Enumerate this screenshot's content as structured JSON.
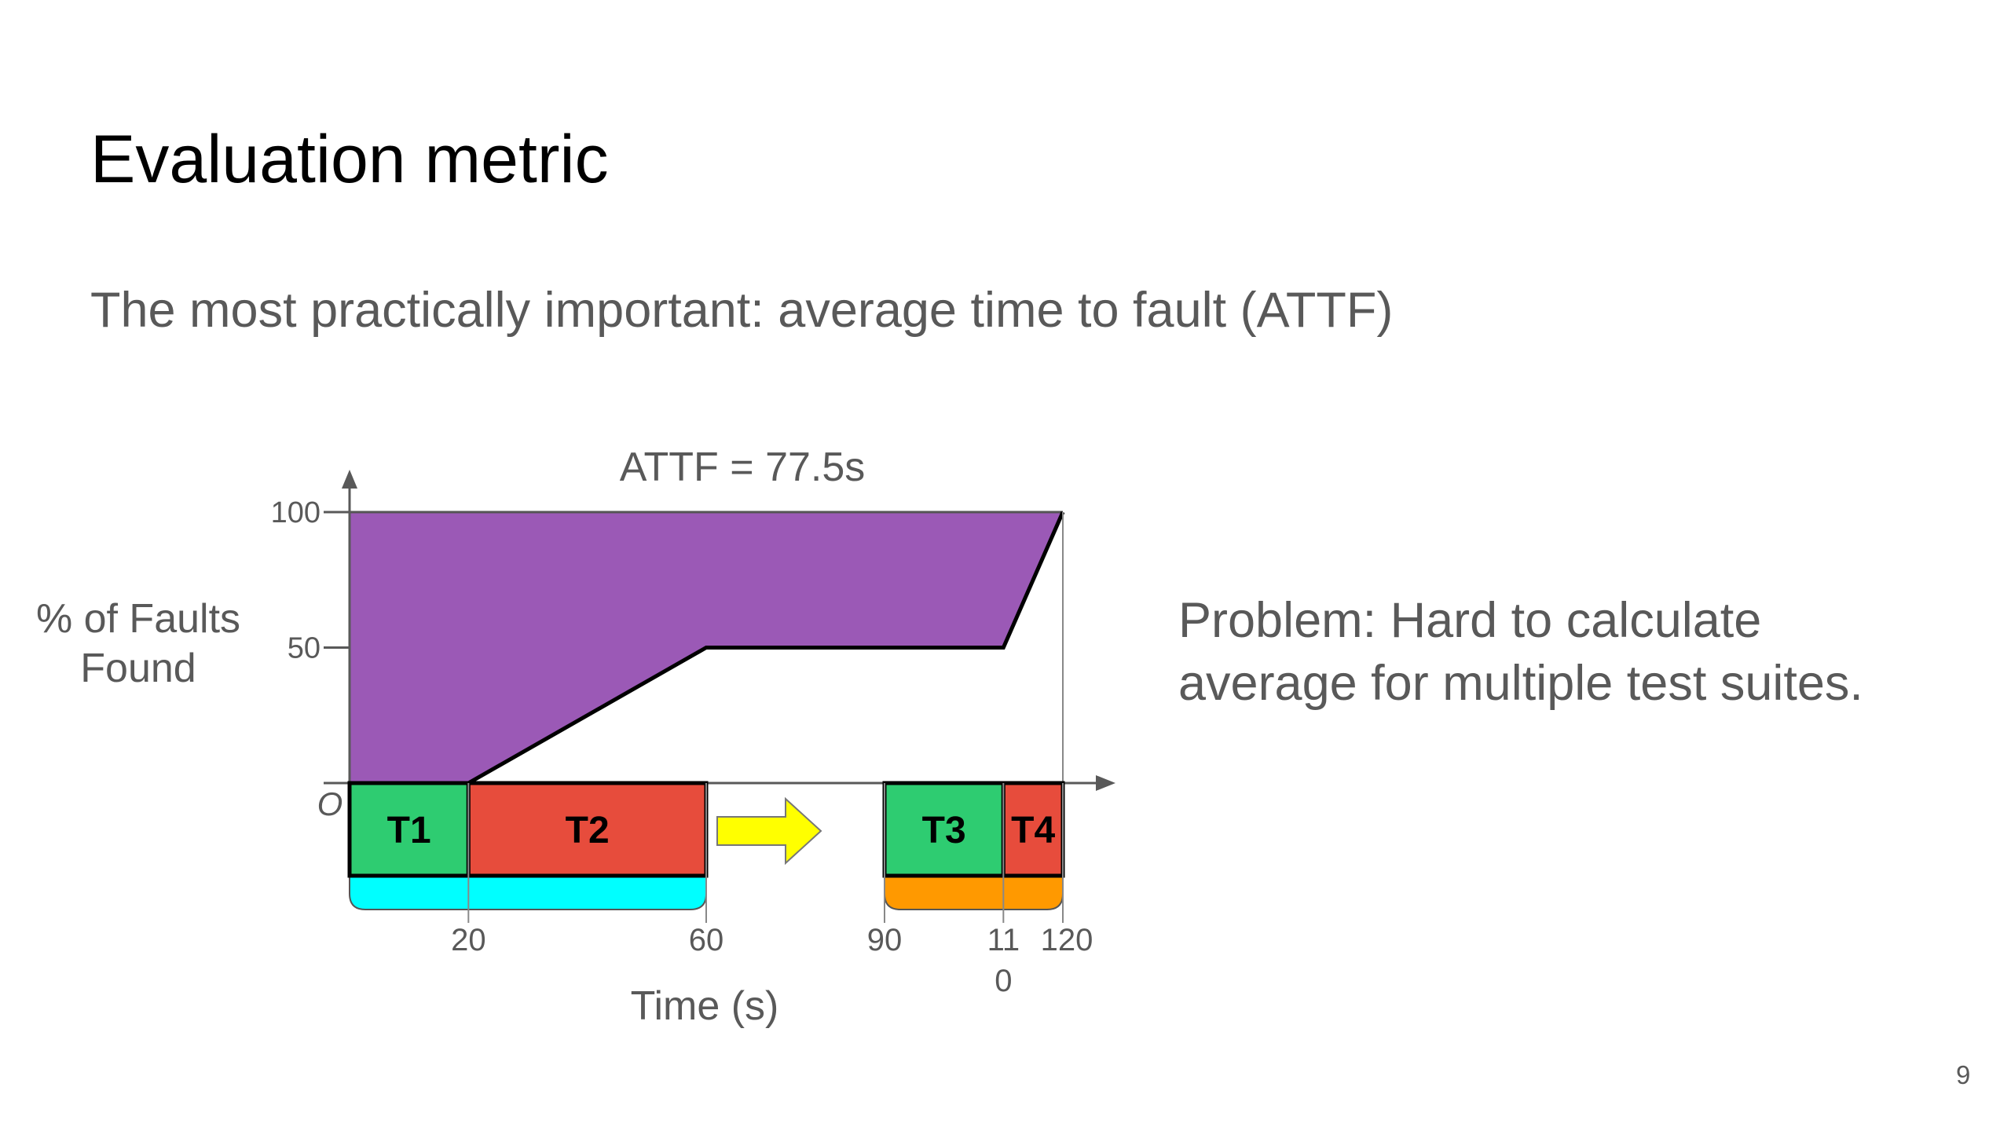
{
  "slide": {
    "title": "Evaluation metric",
    "subtitle": "The most practically important: average time to fault (ATTF)",
    "problem_lines": [
      "Problem: Hard to calculate",
      "average for multiple test suites."
    ],
    "page_number": "9"
  },
  "chart_data": {
    "type": "area",
    "title": "ATTF = 77.5s",
    "xlabel": "Time (s)",
    "ylabel_lines": [
      "% of Faults",
      "Found"
    ],
    "origin_label": "O",
    "ylim": [
      0,
      100
    ],
    "y_ticks": [
      "100",
      "50"
    ],
    "x_ticks": [
      {
        "value": 20,
        "lines": [
          "20"
        ]
      },
      {
        "value": 60,
        "lines": [
          "60"
        ]
      },
      {
        "value": 90,
        "lines": [
          "90"
        ]
      },
      {
        "value": 110,
        "lines": [
          "11",
          "0"
        ]
      },
      {
        "value": 120,
        "lines": [
          "120"
        ]
      }
    ],
    "series": [
      {
        "x": [
          0,
          20,
          60,
          110,
          120
        ],
        "y": [
          0,
          0,
          50,
          50,
          100
        ]
      }
    ],
    "tests": [
      {
        "label": "T1",
        "start": 0,
        "end": 20,
        "color": "#2ecc71"
      },
      {
        "label": "T2",
        "start": 20,
        "end": 60,
        "color": "#e74c3c"
      },
      {
        "label": "T3",
        "start": 90,
        "end": 110,
        "color": "#2ecc71"
      },
      {
        "label": "T4",
        "start": 110,
        "end": 120,
        "color": "#e74c3c"
      }
    ],
    "suites": [
      {
        "start": 0,
        "end": 60,
        "color": "#00ffff"
      },
      {
        "start": 90,
        "end": 120,
        "color": "#ff9900"
      }
    ],
    "colors": {
      "area": "#9b59b6",
      "arrow": "#ffff00",
      "axis": "#595959"
    }
  }
}
